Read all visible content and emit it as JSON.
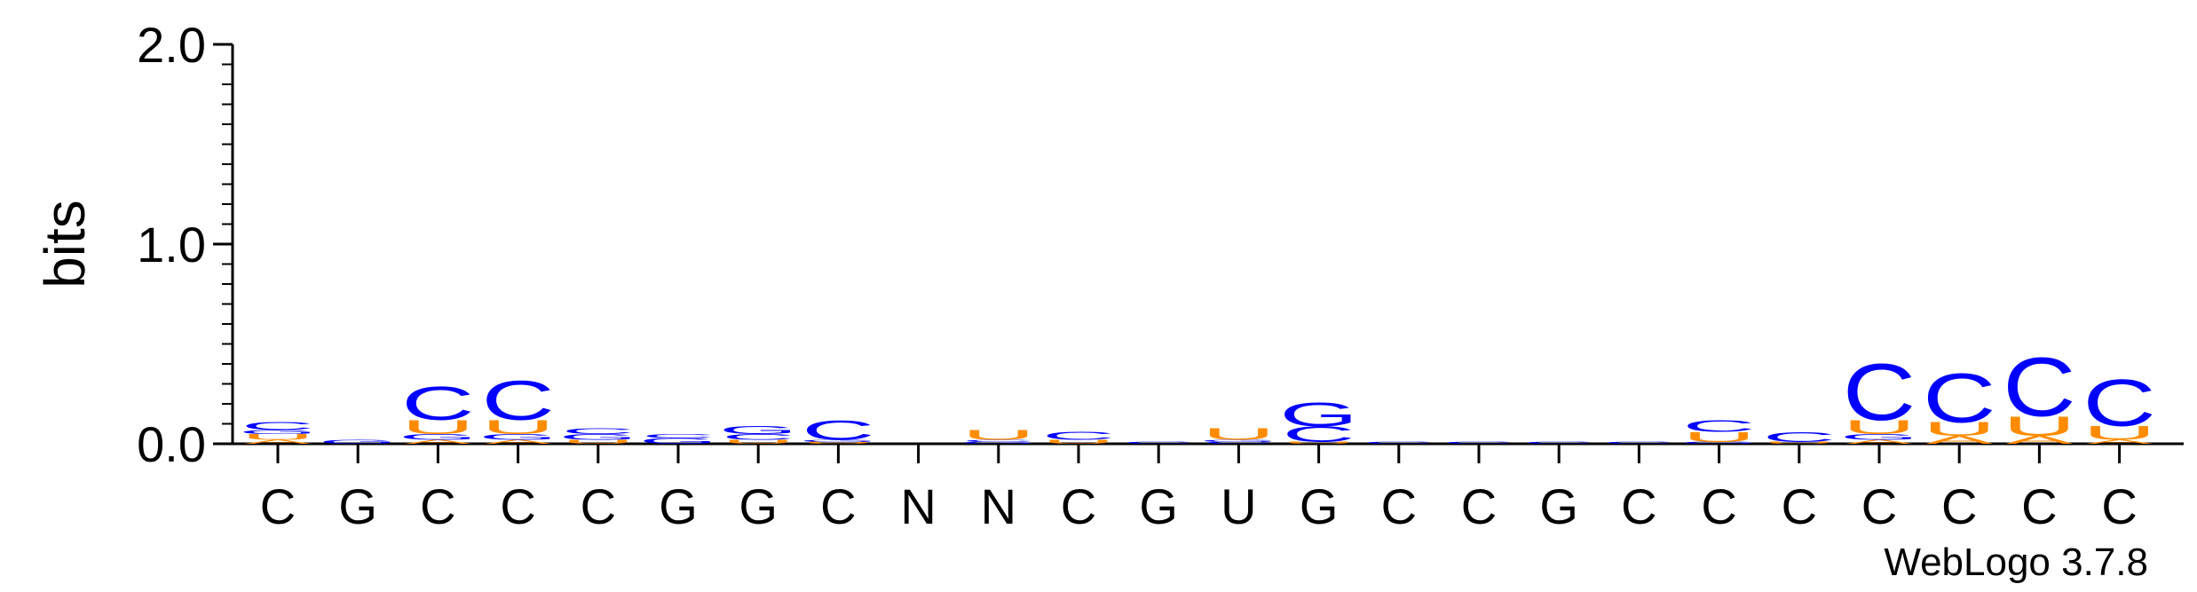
{
  "chart_data": {
    "type": "sequence-logo",
    "ylabel": "bits",
    "ylim": [
      0,
      2.0
    ],
    "yticks": [
      "0.0",
      "1.0",
      "2.0"
    ],
    "ytick_values": [
      0,
      1,
      2
    ],
    "x_labels": [
      "C",
      "G",
      "C",
      "C",
      "C",
      "G",
      "G",
      "C",
      "N",
      "N",
      "C",
      "G",
      "U",
      "G",
      "C",
      "C",
      "G",
      "C",
      "C",
      "C",
      "C",
      "C",
      "C",
      "C"
    ],
    "colors": {
      "C": "#0000ff",
      "G": "#0000ff",
      "U": "#ff8c00",
      "A": "#ff8c00"
    },
    "stacks": [
      [
        {
          "l": "A",
          "h": 0.02
        },
        {
          "l": "U",
          "h": 0.03
        },
        {
          "l": "G",
          "h": 0.02
        },
        {
          "l": "C",
          "h": 0.04
        }
      ],
      [
        {
          "l": "G",
          "h": 0.02
        }
      ],
      [
        {
          "l": "A",
          "h": 0.02
        },
        {
          "l": "G",
          "h": 0.03
        },
        {
          "l": "U",
          "h": 0.07
        },
        {
          "l": "C",
          "h": 0.17
        }
      ],
      [
        {
          "l": "A",
          "h": 0.02
        },
        {
          "l": "G",
          "h": 0.03
        },
        {
          "l": "U",
          "h": 0.07
        },
        {
          "l": "C",
          "h": 0.2
        }
      ],
      [
        {
          "l": "U",
          "h": 0.02
        },
        {
          "l": "G",
          "h": 0.03
        },
        {
          "l": "C",
          "h": 0.03
        }
      ],
      [
        {
          "l": "G",
          "h": 0.03
        },
        {
          "l": "C",
          "h": 0.02
        }
      ],
      [
        {
          "l": "U",
          "h": 0.02
        },
        {
          "l": "C",
          "h": 0.03
        },
        {
          "l": "G",
          "h": 0.04
        }
      ],
      [
        {
          "l": "U",
          "h": 0.01
        },
        {
          "l": "G",
          "h": 0.01
        },
        {
          "l": "C",
          "h": 0.1
        }
      ],
      [],
      [
        {
          "l": "G",
          "h": 0.01
        },
        {
          "l": "C",
          "h": 0.01
        },
        {
          "l": "U",
          "h": 0.05
        }
      ],
      [
        {
          "l": "U",
          "h": 0.02
        },
        {
          "l": "C",
          "h": 0.04
        }
      ],
      [
        {
          "l": "C",
          "h": 0.01
        }
      ],
      [
        {
          "l": "C",
          "h": 0.01
        },
        {
          "l": "G",
          "h": 0.01
        },
        {
          "l": "U",
          "h": 0.06
        }
      ],
      [
        {
          "l": "U",
          "h": 0.01
        },
        {
          "l": "C",
          "h": 0.08
        },
        {
          "l": "G",
          "h": 0.12
        }
      ],
      [
        {
          "l": "C",
          "h": 0.01
        }
      ],
      [
        {
          "l": "C",
          "h": 0.01
        }
      ],
      [
        {
          "l": "C",
          "h": 0.01
        }
      ],
      [
        {
          "l": "C",
          "h": 0.01
        }
      ],
      [
        {
          "l": "G",
          "h": 0.01
        },
        {
          "l": "U",
          "h": 0.05
        },
        {
          "l": "C",
          "h": 0.06
        }
      ],
      [
        {
          "l": "U",
          "h": 0.01
        },
        {
          "l": "C",
          "h": 0.05
        }
      ],
      [
        {
          "l": "A",
          "h": 0.02
        },
        {
          "l": "G",
          "h": 0.03
        },
        {
          "l": "U",
          "h": 0.07
        },
        {
          "l": "C",
          "h": 0.29
        }
      ],
      [
        {
          "l": "A",
          "h": 0.04
        },
        {
          "l": "U",
          "h": 0.07
        },
        {
          "l": "C",
          "h": 0.25
        }
      ],
      [
        {
          "l": "A",
          "h": 0.04
        },
        {
          "l": "U",
          "h": 0.1
        },
        {
          "l": "C",
          "h": 0.3
        }
      ],
      [
        {
          "l": "A",
          "h": 0.02
        },
        {
          "l": "U",
          "h": 0.07
        },
        {
          "l": "C",
          "h": 0.24
        }
      ]
    ]
  },
  "footer": {
    "version": "WebLogo 3.7.8"
  }
}
